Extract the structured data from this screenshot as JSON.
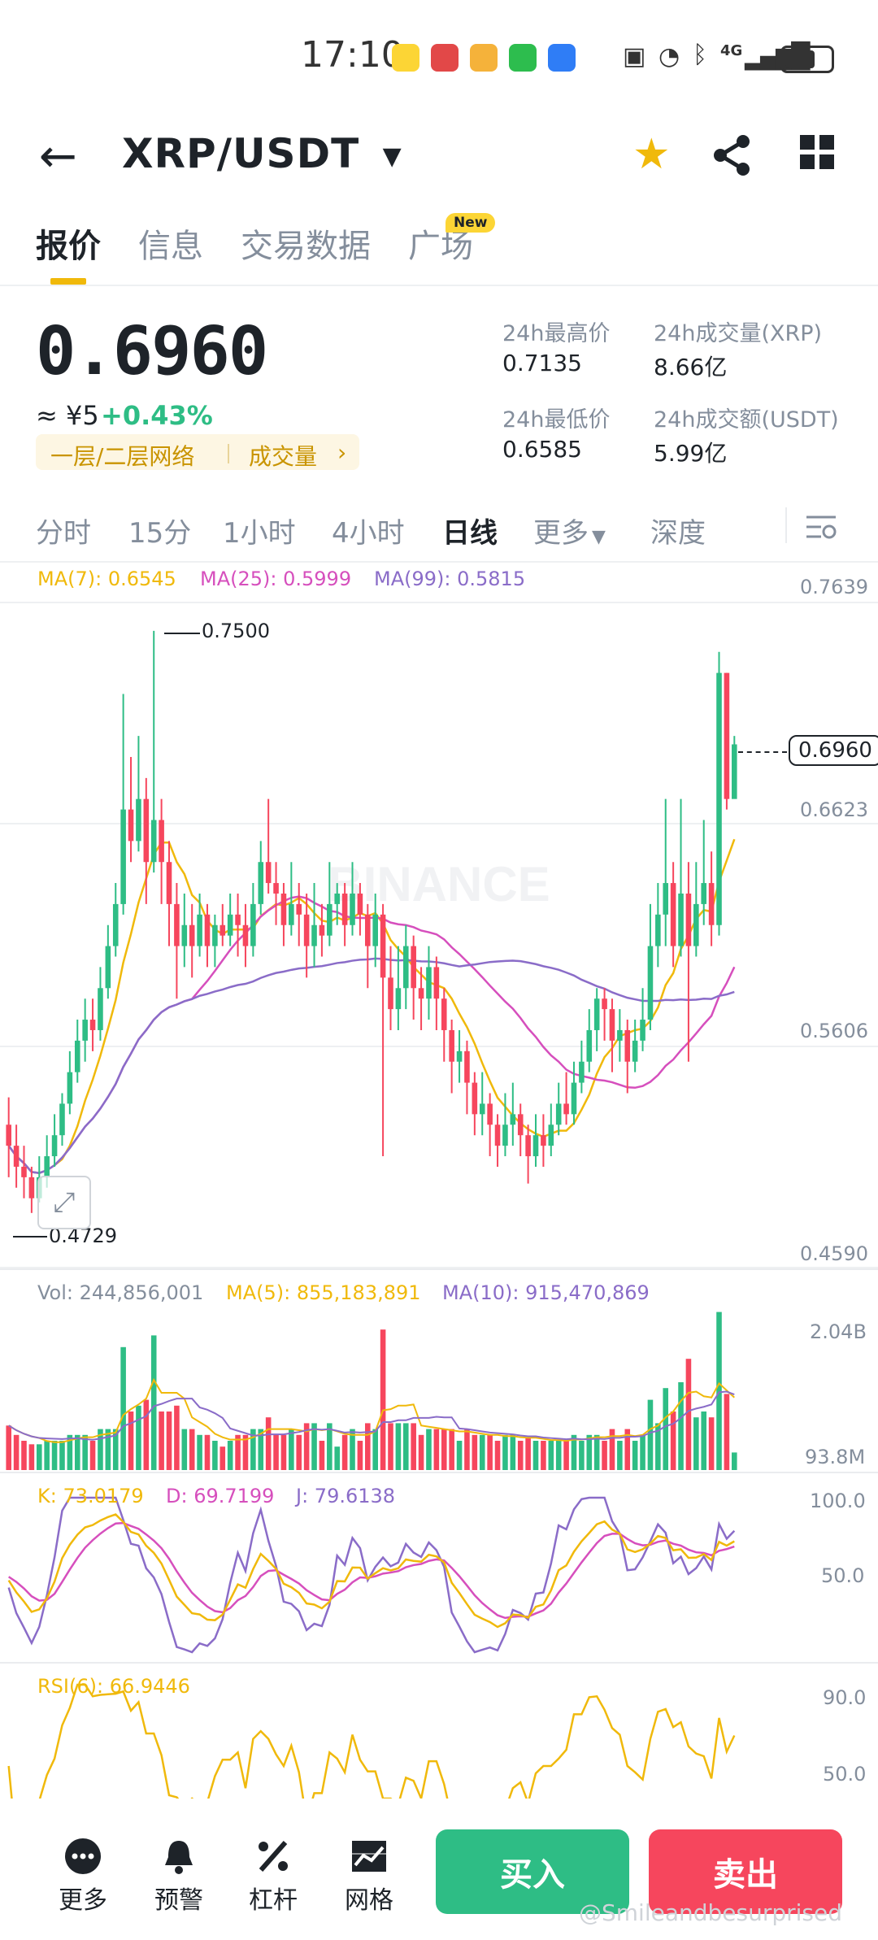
{
  "status_bar": {
    "time": "17:10",
    "network": "4G"
  },
  "header": {
    "pair": "XRP/USDT"
  },
  "tabs": [
    {
      "label": "报价",
      "active": true
    },
    {
      "label": "信息"
    },
    {
      "label": "交易数据"
    },
    {
      "label": "广场",
      "badge": "New"
    }
  ],
  "ticker": {
    "last_price": "0.6960",
    "cny": "≈ ¥5",
    "change": "+0.43%",
    "tag_grid": "一层/二层网络",
    "tag_volume": "成交量",
    "tag_arrow": "›",
    "high_label": "24h最高价",
    "high": "0.7135",
    "low_label": "24h最低价",
    "low": "0.6585",
    "vol_label": "24h成交量(XRP)",
    "vol": "8.66亿",
    "amount_label": "24h成交额(USDT)",
    "amount": "5.99亿"
  },
  "intervals": [
    "分时",
    "15分",
    "1小时",
    "4小时",
    "日线",
    "更多",
    "深度"
  ],
  "active_interval": "日线",
  "main_chart": {
    "ma7": "MA(7): 0.6545",
    "ma25": "MA(25): 0.5999",
    "ma99": "MA(99): 0.5815",
    "axis": [
      "0.7639",
      "0.6623",
      "0.5606",
      "0.4590"
    ],
    "current_price_label": "0.6960",
    "high_marker": "0.7500",
    "low_marker": "0.4729",
    "watermark": "BINANCE"
  },
  "volume_panel": {
    "vol": "Vol: 244,856,001",
    "ma5": "MA(5): 855,183,891",
    "ma10": "MA(10): 915,470,869",
    "axis_top": "2.04B",
    "axis_bottom": "93.8M"
  },
  "kdj_panel": {
    "k": "K: 73.0179",
    "d": "D: 69.7199",
    "j": "J: 79.6138",
    "axis_top": "100.0",
    "axis_mid": "50.0"
  },
  "rsi_panel": {
    "rsi": "RSI(6): 66.9446",
    "axis_top": "90.0",
    "axis_mid": "50.0"
  },
  "bottom_bar": {
    "more": "更多",
    "alert": "预警",
    "leverage": "杠杆",
    "grid": "网格",
    "buy": "买入",
    "sell": "卖出"
  },
  "watermark_text": "@Smileandbesurprised",
  "colors": {
    "up": "#2ebd85",
    "down": "#f6465d",
    "ma7": "#f0b90b",
    "ma25": "#d64fbd",
    "ma99": "#8a6cc8",
    "accent": "#f0b90b"
  },
  "chart_data": {
    "type": "candlestick",
    "title": "XRP/USDT 日线",
    "ylim": [
      0.459,
      0.7639
    ],
    "candles": [
      [
        0.515,
        0.505,
        0.528,
        0.49
      ],
      [
        0.505,
        0.495,
        0.515,
        0.485
      ],
      [
        0.495,
        0.49,
        0.505,
        0.48
      ],
      [
        0.49,
        0.48,
        0.495,
        0.473
      ],
      [
        0.48,
        0.49,
        0.5,
        0.478
      ],
      [
        0.49,
        0.5,
        0.51,
        0.485
      ],
      [
        0.5,
        0.51,
        0.52,
        0.495
      ],
      [
        0.51,
        0.525,
        0.53,
        0.505
      ],
      [
        0.525,
        0.54,
        0.55,
        0.52
      ],
      [
        0.54,
        0.555,
        0.565,
        0.535
      ],
      [
        0.555,
        0.565,
        0.575,
        0.545
      ],
      [
        0.565,
        0.56,
        0.575,
        0.55
      ],
      [
        0.56,
        0.58,
        0.59,
        0.555
      ],
      [
        0.58,
        0.6,
        0.61,
        0.575
      ],
      [
        0.6,
        0.62,
        0.63,
        0.595
      ],
      [
        0.62,
        0.665,
        0.72,
        0.615
      ],
      [
        0.665,
        0.65,
        0.69,
        0.64
      ],
      [
        0.65,
        0.67,
        0.7,
        0.645
      ],
      [
        0.67,
        0.64,
        0.68,
        0.62
      ],
      [
        0.64,
        0.66,
        0.75,
        0.635
      ],
      [
        0.66,
        0.64,
        0.67,
        0.62
      ],
      [
        0.64,
        0.62,
        0.65,
        0.6
      ],
      [
        0.62,
        0.6,
        0.63,
        0.575
      ],
      [
        0.6,
        0.61,
        0.625,
        0.59
      ],
      [
        0.61,
        0.6,
        0.62,
        0.585
      ],
      [
        0.6,
        0.615,
        0.625,
        0.595
      ],
      [
        0.615,
        0.6,
        0.62,
        0.59
      ],
      [
        0.6,
        0.61,
        0.615,
        0.59
      ],
      [
        0.61,
        0.605,
        0.62,
        0.6
      ],
      [
        0.605,
        0.615,
        0.625,
        0.6
      ],
      [
        0.615,
        0.61,
        0.625,
        0.595
      ],
      [
        0.61,
        0.6,
        0.62,
        0.59
      ],
      [
        0.6,
        0.62,
        0.63,
        0.595
      ],
      [
        0.62,
        0.64,
        0.65,
        0.615
      ],
      [
        0.64,
        0.63,
        0.67,
        0.625
      ],
      [
        0.63,
        0.625,
        0.64,
        0.61
      ],
      [
        0.625,
        0.61,
        0.63,
        0.6
      ],
      [
        0.61,
        0.62,
        0.64,
        0.605
      ],
      [
        0.62,
        0.615,
        0.63,
        0.6
      ],
      [
        0.615,
        0.6,
        0.625,
        0.585
      ],
      [
        0.6,
        0.61,
        0.63,
        0.59
      ],
      [
        0.61,
        0.605,
        0.62,
        0.595
      ],
      [
        0.605,
        0.62,
        0.64,
        0.6
      ],
      [
        0.62,
        0.625,
        0.63,
        0.61
      ],
      [
        0.625,
        0.61,
        0.63,
        0.6
      ],
      [
        0.61,
        0.625,
        0.64,
        0.605
      ],
      [
        0.625,
        0.615,
        0.63,
        0.605
      ],
      [
        0.615,
        0.6,
        0.62,
        0.58
      ],
      [
        0.6,
        0.615,
        0.625,
        0.59
      ],
      [
        0.615,
        0.585,
        0.62,
        0.5
      ],
      [
        0.585,
        0.57,
        0.6,
        0.56
      ],
      [
        0.57,
        0.58,
        0.6,
        0.56
      ],
      [
        0.58,
        0.6,
        0.61,
        0.57
      ],
      [
        0.6,
        0.58,
        0.605,
        0.565
      ],
      [
        0.58,
        0.575,
        0.59,
        0.56
      ],
      [
        0.575,
        0.59,
        0.6,
        0.565
      ],
      [
        0.59,
        0.575,
        0.595,
        0.56
      ],
      [
        0.575,
        0.56,
        0.58,
        0.545
      ],
      [
        0.56,
        0.545,
        0.565,
        0.53
      ],
      [
        0.545,
        0.55,
        0.56,
        0.535
      ],
      [
        0.55,
        0.535,
        0.555,
        0.52
      ],
      [
        0.535,
        0.52,
        0.54,
        0.51
      ],
      [
        0.52,
        0.525,
        0.54,
        0.51
      ],
      [
        0.525,
        0.515,
        0.53,
        0.5
      ],
      [
        0.515,
        0.505,
        0.52,
        0.495
      ],
      [
        0.505,
        0.515,
        0.53,
        0.5
      ],
      [
        0.515,
        0.52,
        0.535,
        0.505
      ],
      [
        0.52,
        0.51,
        0.525,
        0.5
      ],
      [
        0.51,
        0.5,
        0.515,
        0.487
      ],
      [
        0.5,
        0.51,
        0.52,
        0.495
      ],
      [
        0.51,
        0.505,
        0.52,
        0.495
      ],
      [
        0.505,
        0.515,
        0.525,
        0.5
      ],
      [
        0.515,
        0.525,
        0.535,
        0.51
      ],
      [
        0.525,
        0.52,
        0.54,
        0.515
      ],
      [
        0.52,
        0.535,
        0.545,
        0.515
      ],
      [
        0.535,
        0.545,
        0.555,
        0.53
      ],
      [
        0.545,
        0.56,
        0.57,
        0.54
      ],
      [
        0.56,
        0.575,
        0.58,
        0.55
      ],
      [
        0.575,
        0.57,
        0.58,
        0.555
      ],
      [
        0.57,
        0.555,
        0.575,
        0.54
      ],
      [
        0.555,
        0.56,
        0.57,
        0.545
      ],
      [
        0.56,
        0.545,
        0.565,
        0.53
      ],
      [
        0.545,
        0.555,
        0.565,
        0.54
      ],
      [
        0.555,
        0.565,
        0.58,
        0.55
      ],
      [
        0.565,
        0.6,
        0.62,
        0.56
      ],
      [
        0.6,
        0.615,
        0.63,
        0.59
      ],
      [
        0.615,
        0.63,
        0.67,
        0.6
      ],
      [
        0.63,
        0.6,
        0.64,
        0.59
      ],
      [
        0.6,
        0.625,
        0.67,
        0.595
      ],
      [
        0.625,
        0.6,
        0.64,
        0.545
      ],
      [
        0.6,
        0.62,
        0.64,
        0.595
      ],
      [
        0.62,
        0.63,
        0.66,
        0.61
      ],
      [
        0.63,
        0.61,
        0.645,
        0.6
      ],
      [
        0.61,
        0.73,
        0.74,
        0.605
      ],
      [
        0.73,
        0.67,
        0.73,
        0.665
      ],
      [
        0.67,
        0.696,
        0.7,
        0.685
      ]
    ]
  }
}
